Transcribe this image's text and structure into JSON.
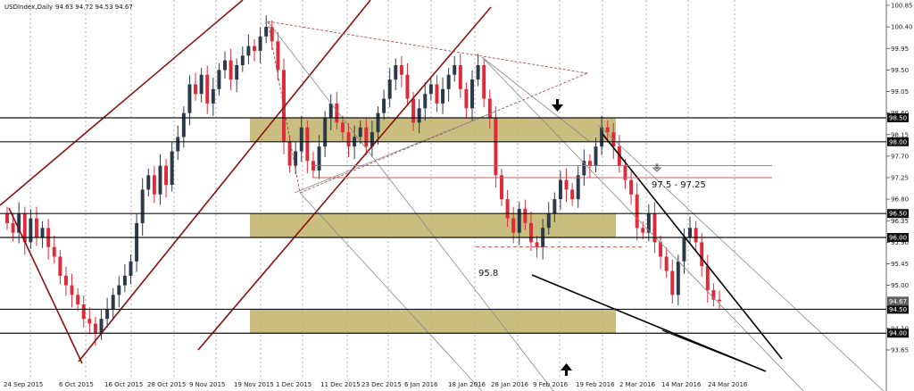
{
  "chart_data": {
    "type": "candlestick",
    "symbol_label": "USDIndex,Daily",
    "ohlc_label": "94.63 94.72 94.53 94.67",
    "y_range": [
      93.65,
      100.85
    ],
    "y_ticks": [
      "100.85",
      "100.40",
      "99.95",
      "99.50",
      "99.05",
      "98.60",
      "98.15",
      "97.70",
      "97.25",
      "96.80",
      "96.35",
      "95.90",
      "95.45",
      "95.00",
      "94.55",
      "94.10",
      "93.65"
    ],
    "x_ticks": [
      "24 Sep 2015",
      "6 Oct 2015",
      "16 Oct 2015",
      "28 Oct 2015",
      "9 Nov 2015",
      "19 Nov 2015",
      "1 Dec 2015",
      "11 Dec 2015",
      "23 Dec 2015",
      "6 Jan 2016",
      "18 Jan 2016",
      "28 Jan 2016",
      "9 Feb 2016",
      "19 Feb 2016",
      "2 Mar 2016",
      "14 Mar 2016",
      "24 Mar 2016"
    ],
    "closes": [
      96.3,
      96.1,
      96.5,
      95.9,
      96.4,
      96.0,
      96.2,
      95.8,
      95.6,
      95.2,
      95.0,
      94.8,
      94.6,
      94.3,
      94.2,
      94.0,
      94.3,
      94.5,
      94.8,
      95.0,
      95.2,
      95.5,
      96.3,
      97.0,
      97.3,
      96.9,
      97.5,
      97.1,
      97.8,
      98.1,
      98.6,
      99.2,
      99.0,
      99.4,
      98.8,
      99.1,
      99.5,
      99.7,
      99.3,
      99.6,
      99.8,
      100.0,
      99.9,
      100.2,
      100.4,
      100.1,
      99.5,
      98.0,
      97.5,
      97.8,
      98.3,
      97.6,
      97.4,
      97.9,
      98.5,
      98.8,
      98.4,
      98.2,
      97.9,
      98.1,
      98.3,
      97.9,
      98.2,
      98.6,
      98.9,
      99.3,
      99.6,
      99.4,
      98.9,
      98.4,
      98.7,
      99.0,
      99.2,
      98.8,
      99.1,
      99.4,
      99.6,
      99.1,
      98.7,
      99.3,
      99.6,
      98.9,
      98.5,
      97.3,
      96.8,
      96.4,
      96.1,
      96.6,
      96.3,
      95.9,
      95.8,
      96.2,
      96.5,
      96.8,
      97.2,
      97.0,
      96.8,
      97.3,
      97.6,
      97.5,
      97.9,
      98.3,
      98.2,
      97.9,
      97.5,
      97.2,
      96.9,
      96.2,
      96.1,
      96.5,
      95.9,
      95.6,
      95.3,
      94.8,
      95.5,
      96.0,
      96.2,
      95.9,
      95.4,
      94.9,
      94.7,
      94.67
    ],
    "annotations": {
      "target_band_label": "97.5 - 97.25",
      "support_label": "95.8"
    },
    "bands": [
      [
        98.0,
        98.5
      ],
      [
        96.0,
        96.5
      ],
      [
        94.0,
        94.5
      ]
    ],
    "horizontal_levels": [
      {
        "value": 98.5,
        "label": "98.50"
      },
      {
        "value": 98.0,
        "label": "98.00"
      },
      {
        "value": 96.5,
        "label": "96.50"
      },
      {
        "value": 96.0,
        "label": "96.00"
      },
      {
        "value": 94.5,
        "label": "94.50"
      },
      {
        "value": 94.0,
        "label": "94.00"
      }
    ],
    "current_price": {
      "value": 94.67,
      "label": "94.67"
    },
    "colors": {
      "bull": "#2b3a4a",
      "bear": "#e02a3a",
      "band": "#bfb36a",
      "channel": "#8b1010",
      "level": "#111111",
      "support": "#b04040"
    }
  }
}
